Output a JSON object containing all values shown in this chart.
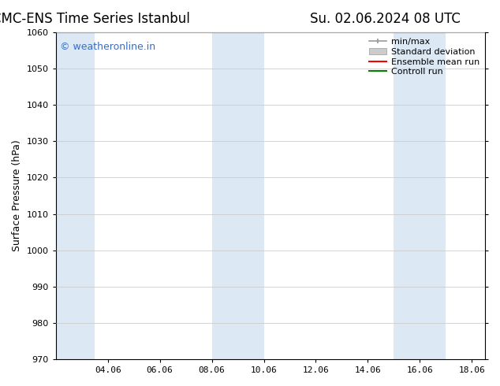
{
  "title_left": "CMC-ENS Time Series Istanbul",
  "title_right": "Su. 02.06.2024 08 UTC",
  "ylabel": "Surface Pressure (hPa)",
  "ylim": [
    970,
    1060
  ],
  "yticks": [
    970,
    980,
    990,
    1000,
    1010,
    1020,
    1030,
    1040,
    1050,
    1060
  ],
  "xlim": [
    2.0,
    18.5
  ],
  "xtick_labels": [
    "04.06",
    "06.06",
    "08.06",
    "10.06",
    "12.06",
    "14.06",
    "16.06",
    "18.06"
  ],
  "xtick_positions": [
    4.0,
    6.0,
    8.0,
    10.0,
    12.0,
    14.0,
    16.0,
    18.0
  ],
  "shaded_bands": [
    {
      "x_start": 2.0,
      "x_end": 3.5
    },
    {
      "x_start": 8.0,
      "x_end": 10.0
    },
    {
      "x_start": 15.0,
      "x_end": 17.0
    }
  ],
  "shaded_color": "#dce9f5",
  "background_color": "#ffffff",
  "plot_bg_color": "#ffffff",
  "watermark": "© weatheronline.in",
  "watermark_color": "#3b6cc2",
  "legend_items": [
    {
      "label": "min/max",
      "color": "#aaaaaa",
      "style": "line_with_caps"
    },
    {
      "label": "Standard deviation",
      "color": "#cccccc",
      "style": "filled_rect"
    },
    {
      "label": "Ensemble mean run",
      "color": "#ff0000",
      "style": "line"
    },
    {
      "label": "Controll run",
      "color": "#008000",
      "style": "line"
    }
  ],
  "grid_color": "#cccccc",
  "title_fontsize": 12,
  "axis_label_fontsize": 9,
  "tick_fontsize": 8,
  "legend_fontsize": 8,
  "watermark_fontsize": 9
}
